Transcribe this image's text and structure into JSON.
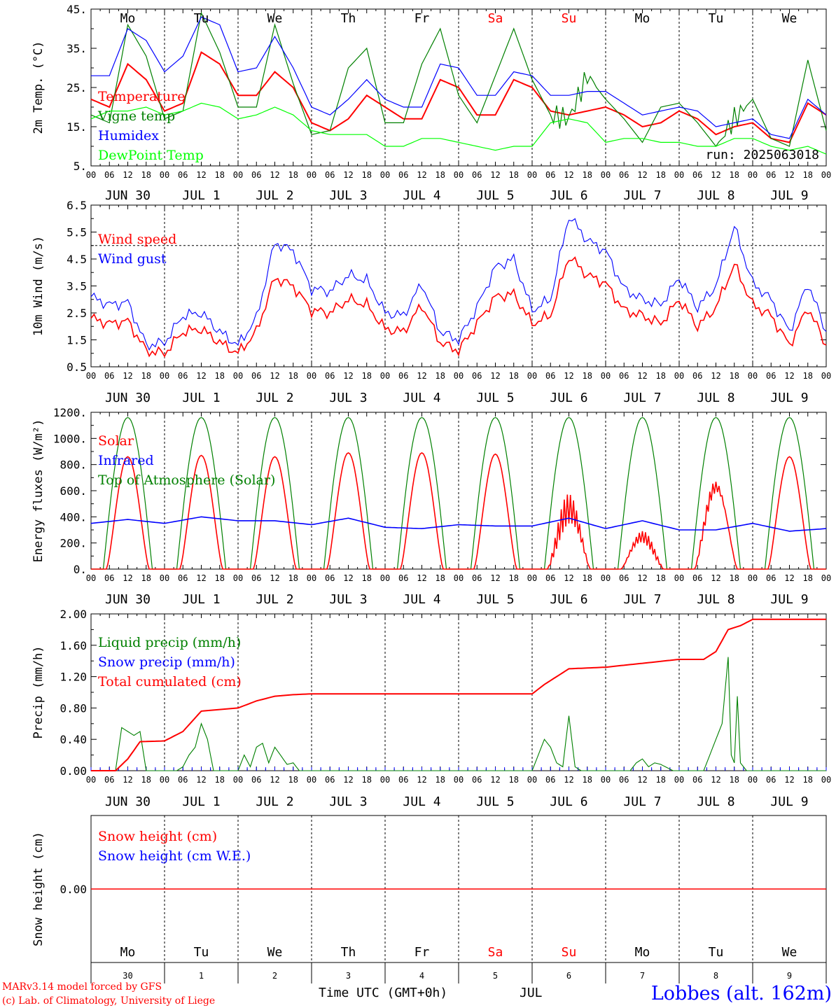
{
  "chart_data": [
    {
      "type": "line",
      "id": "temp",
      "ylabel": "2m Temp. (°C)",
      "ylim": [
        5,
        45
      ],
      "yticks": [
        "5.",
        "15.",
        "25.",
        "35.",
        "45."
      ],
      "day_labels": [
        "Mo",
        "Tu",
        "We",
        "Th",
        "Fr",
        "Sa",
        "Su",
        "Mo",
        "Tu",
        "We"
      ],
      "run_label": "run: 2025063018",
      "grid": "vertical day separators (dotted)",
      "series": [
        {
          "name": "Temperature",
          "color": "#ff0000",
          "x": [
            0,
            6,
            12,
            18,
            24,
            30,
            36,
            42,
            48,
            54,
            60,
            66,
            72,
            78,
            84,
            90,
            96,
            102,
            108,
            114,
            120,
            126,
            132,
            138,
            144,
            150,
            156,
            162,
            168,
            174,
            180,
            186,
            192,
            198,
            204,
            210,
            216,
            222,
            228,
            234,
            240
          ],
          "values": [
            22,
            20,
            31,
            27,
            19,
            21,
            34,
            31,
            23,
            23,
            29,
            25,
            16,
            14,
            17,
            23,
            20,
            17,
            17,
            27,
            25,
            18,
            18,
            27,
            25,
            19,
            18,
            19,
            20,
            18,
            15,
            16,
            19,
            17,
            13,
            15,
            16,
            12,
            11,
            21,
            18
          ]
        },
        {
          "name": "Vigne temp",
          "color": "#008000",
          "x": [
            0,
            6,
            12,
            18,
            24,
            30,
            36,
            42,
            48,
            54,
            60,
            66,
            72,
            78,
            84,
            90,
            96,
            102,
            108,
            114,
            120,
            126,
            132,
            138,
            144,
            150,
            156,
            162,
            168,
            174,
            180,
            186,
            192,
            198,
            204,
            210,
            216,
            222,
            228,
            234,
            240
          ],
          "values": [
            18,
            16,
            41,
            33,
            17,
            19,
            44,
            34,
            20,
            20,
            41,
            26,
            13,
            14,
            30,
            35,
            16,
            16,
            31,
            40,
            23,
            16,
            28,
            40,
            27,
            18,
            17,
            28,
            22,
            17,
            11,
            20,
            21,
            16,
            10,
            17,
            22,
            12,
            10,
            32,
            14
          ]
        },
        {
          "name": "Humidex",
          "color": "#0000ff",
          "x": [
            0,
            6,
            12,
            18,
            24,
            30,
            36,
            42,
            48,
            54,
            60,
            66,
            72,
            78,
            84,
            90,
            96,
            102,
            108,
            114,
            120,
            126,
            132,
            138,
            144,
            150,
            156,
            162,
            168,
            174,
            180,
            186,
            192,
            198,
            204,
            210,
            216,
            222,
            228,
            234,
            240
          ],
          "values": [
            28,
            28,
            40,
            37,
            29,
            33,
            43,
            41,
            29,
            30,
            38,
            30,
            20,
            18,
            22,
            27,
            22,
            20,
            20,
            31,
            30,
            23,
            23,
            29,
            28,
            23,
            23,
            24,
            24,
            21,
            18,
            19,
            20,
            19,
            15,
            16,
            17,
            13,
            12,
            22,
            18
          ]
        },
        {
          "name": "DewPoint Temp",
          "color": "#00ff00",
          "x": [
            0,
            6,
            12,
            18,
            24,
            30,
            36,
            42,
            48,
            54,
            60,
            66,
            72,
            78,
            84,
            90,
            96,
            102,
            108,
            114,
            120,
            126,
            132,
            138,
            144,
            150,
            156,
            162,
            168,
            174,
            180,
            186,
            192,
            198,
            204,
            210,
            216,
            222,
            228,
            234,
            240
          ],
          "values": [
            17,
            19,
            19,
            20,
            18,
            19,
            21,
            20,
            17,
            18,
            20,
            18,
            14,
            13,
            13,
            13,
            10,
            10,
            12,
            12,
            11,
            10,
            9,
            10,
            10,
            16,
            17,
            16,
            11,
            12,
            12,
            11,
            11,
            10,
            10,
            12,
            12,
            10,
            9,
            10,
            8
          ]
        }
      ]
    },
    {
      "type": "line",
      "id": "wind",
      "ylabel": "10m Wind (m/s)",
      "ylim": [
        0.5,
        6.5
      ],
      "yticks": [
        "0.5",
        "1.5",
        "2.5",
        "3.5",
        "4.5",
        "5.5",
        "6.5"
      ],
      "reference_line": 5.0,
      "series": [
        {
          "name": "Wind speed",
          "color": "#ff0000",
          "x": [
            0,
            6,
            12,
            18,
            24,
            30,
            36,
            42,
            48,
            54,
            60,
            66,
            72,
            78,
            84,
            90,
            96,
            102,
            108,
            114,
            120,
            126,
            132,
            138,
            144,
            150,
            156,
            162,
            168,
            174,
            180,
            186,
            192,
            198,
            204,
            210,
            216,
            222,
            228,
            234,
            240
          ],
          "values": [
            2.3,
            2.1,
            2.2,
            1.1,
            1.0,
            1.8,
            1.9,
            1.4,
            1.0,
            1.8,
            3.8,
            3.5,
            2.6,
            2.5,
            3.0,
            2.8,
            1.9,
            1.8,
            2.8,
            1.4,
            1.1,
            2.1,
            3.1,
            3.2,
            2.1,
            2.4,
            4.6,
            3.9,
            3.6,
            2.6,
            2.4,
            2.1,
            3.0,
            2.0,
            2.7,
            4.3,
            2.8,
            2.4,
            1.3,
            2.7,
            1.3
          ]
        },
        {
          "name": "Wind gust",
          "color": "#0000ff",
          "x": [
            0,
            6,
            12,
            18,
            24,
            30,
            36,
            42,
            48,
            54,
            60,
            66,
            72,
            78,
            84,
            90,
            96,
            102,
            108,
            114,
            120,
            126,
            132,
            138,
            144,
            150,
            156,
            162,
            168,
            174,
            180,
            186,
            192,
            198,
            204,
            210,
            216,
            222,
            228,
            234,
            240
          ],
          "values": [
            3.1,
            2.8,
            2.9,
            1.3,
            1.4,
            2.4,
            2.5,
            1.8,
            1.3,
            2.3,
            5.1,
            4.8,
            3.4,
            3.3,
            3.9,
            3.7,
            2.5,
            2.4,
            3.6,
            1.8,
            1.5,
            2.7,
            4.2,
            4.5,
            2.6,
            3.0,
            6.1,
            5.2,
            4.8,
            3.4,
            3.0,
            2.8,
            3.8,
            2.7,
            3.5,
            5.7,
            3.6,
            3.0,
            1.8,
            3.6,
            1.8
          ]
        }
      ]
    },
    {
      "type": "line",
      "id": "energy",
      "ylabel": "Energy fluxes (W/m²)",
      "ylim": [
        0,
        1200
      ],
      "yticks": [
        "0.",
        "200.",
        "400.",
        "600.",
        "800.",
        "1000.",
        "1200."
      ],
      "solar_peaks": [
        860,
        870,
        860,
        890,
        890,
        880,
        580,
        300,
        740,
        860
      ],
      "toa_peak": 1160,
      "series": [
        {
          "name": "Solar",
          "color": "#ff0000"
        },
        {
          "name": "Infrared",
          "color": "#0000ff",
          "x": [
            0,
            12,
            24,
            36,
            48,
            60,
            72,
            84,
            96,
            108,
            120,
            132,
            144,
            156,
            168,
            180,
            192,
            204,
            216,
            228,
            240
          ],
          "values": [
            350,
            380,
            350,
            400,
            370,
            370,
            340,
            390,
            320,
            310,
            340,
            330,
            330,
            390,
            310,
            370,
            300,
            300,
            350,
            290,
            310
          ]
        },
        {
          "name": "Top of Atmosphere (Solar)",
          "color": "#008000"
        }
      ]
    },
    {
      "type": "line",
      "id": "precip",
      "ylabel": "Precip (mm/h)",
      "ylim": [
        0,
        2.0
      ],
      "yticks": [
        "0.00",
        "0.40",
        "0.80",
        "1.20",
        "1.60",
        "2.00"
      ],
      "series": [
        {
          "name": "Liquid precip (mm/h)",
          "color": "#008000",
          "x": [
            0,
            8,
            10,
            12,
            14,
            16,
            18,
            20,
            24,
            28,
            30,
            32,
            34,
            36,
            38,
            40,
            44,
            48,
            50,
            52,
            54,
            56,
            58,
            60,
            64,
            66,
            68,
            72,
            144,
            146,
            148,
            150,
            152,
            154,
            156,
            158,
            160,
            168,
            176,
            178,
            180,
            182,
            184,
            186,
            190,
            192,
            200,
            202,
            204,
            206,
            208,
            209,
            210,
            211,
            212,
            213,
            214,
            240
          ],
          "values": [
            0,
            0,
            0.55,
            0.5,
            0.45,
            0.5,
            0,
            0,
            0,
            0,
            0.05,
            0.2,
            0.3,
            0.6,
            0.4,
            0,
            0,
            0,
            0.2,
            0.05,
            0.3,
            0.35,
            0.1,
            0.3,
            0.08,
            0.1,
            0,
            0,
            0,
            0.2,
            0.4,
            0.3,
            0.1,
            0.05,
            0.7,
            0.05,
            0,
            0,
            0,
            0.1,
            0.15,
            0.05,
            0.1,
            0.08,
            0,
            0,
            0,
            0.2,
            0.4,
            0.6,
            1.45,
            0.2,
            0.1,
            0.95,
            0.1,
            0.05,
            0,
            0
          ]
        },
        {
          "name": "Snow precip (mm/h)",
          "color": "#0000ff",
          "values": [
            0
          ]
        },
        {
          "name": "Total cumulated (cm)",
          "color": "#ff0000",
          "x": [
            0,
            8,
            12,
            16,
            24,
            30,
            36,
            42,
            48,
            54,
            60,
            66,
            72,
            144,
            148,
            152,
            156,
            168,
            180,
            192,
            200,
            204,
            208,
            212,
            216,
            240
          ],
          "values": [
            0,
            0,
            0.15,
            0.37,
            0.38,
            0.5,
            0.76,
            0.78,
            0.8,
            0.89,
            0.95,
            0.97,
            0.98,
            0.98,
            1.1,
            1.2,
            1.3,
            1.32,
            1.37,
            1.42,
            1.42,
            1.52,
            1.8,
            1.85,
            1.93,
            1.93
          ]
        }
      ]
    },
    {
      "type": "line",
      "id": "snow",
      "ylabel": "Snow height (cm)",
      "yticks": [
        "0.00"
      ],
      "series": [
        {
          "name": "Snow height (cm)",
          "color": "#ff0000",
          "values": [
            0,
            0
          ]
        },
        {
          "name": "Snow height (cm W.E.)",
          "color": "#0000ff",
          "values": [
            0,
            0
          ]
        }
      ]
    }
  ],
  "axis": {
    "hour_ticks": [
      "00",
      "06",
      "12",
      "18"
    ],
    "date_labels": [
      "JUN 30",
      "JUL  1",
      "JUL  2",
      "JUL  3",
      "JUL  4",
      "JUL  5",
      "JUL  6",
      "JUL  7",
      "JUL  8",
      "JUL  9"
    ],
    "day_names": [
      "Mo",
      "Tu",
      "We",
      "Th",
      "Fr",
      "Sa",
      "Su",
      "Mo",
      "Tu",
      "We"
    ],
    "day_numbers": [
      "30",
      "1",
      "2",
      "3",
      "4",
      "5",
      "6",
      "7",
      "8",
      "9"
    ],
    "weekend_color": "#ff0000",
    "xlabel": "Time UTC (GMT+0h)",
    "month": "JUL"
  },
  "footer": {
    "credit1": "MARv3.14 model forced by GFS",
    "credit2": "(c) Lab. of Climatology, University of Liege",
    "station": "Lobbes (alt. 162m)"
  }
}
